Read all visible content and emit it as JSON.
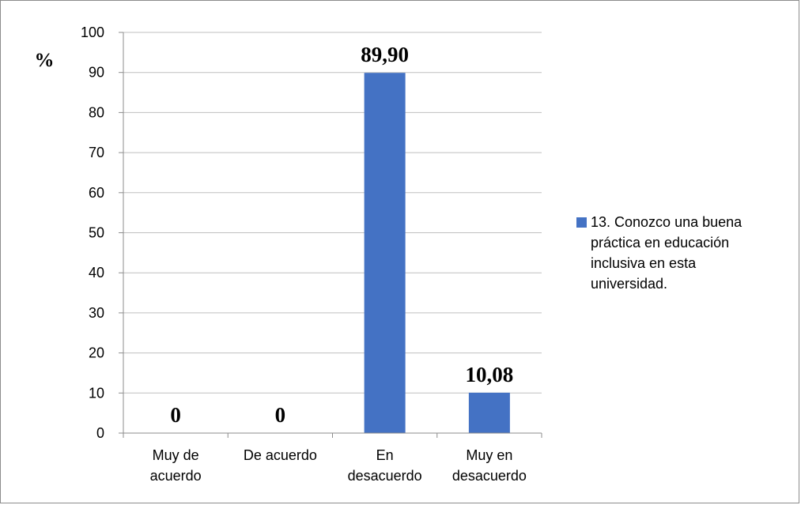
{
  "chart_data": {
    "type": "bar",
    "unit_label": "%",
    "categories": [
      [
        "Muy de",
        "acuerdo"
      ],
      [
        "De acuerdo"
      ],
      [
        "En",
        "desacuerdo"
      ],
      [
        "Muy en",
        "desacuerdo"
      ]
    ],
    "series": [
      {
        "name": "13. Conozco una buena práctica en educación inclusiva en esta universidad.",
        "values": [
          0,
          0,
          89.9,
          10.08
        ],
        "data_labels": [
          "0",
          "0",
          "89,90",
          "10,08"
        ],
        "color": "#4472C4"
      }
    ],
    "legend_lines": [
      "13. Conozco una buena",
      "práctica en educación",
      "inclusiva en esta",
      "universidad."
    ],
    "ylim": [
      0,
      100
    ],
    "yticks": [
      0,
      10,
      20,
      30,
      40,
      50,
      60,
      70,
      80,
      90,
      100
    ],
    "grid": true,
    "legend_position": "right",
    "colors": {
      "bar": "#4472C4",
      "grid": "#bfbfbf",
      "axis": "#8c8c8c"
    }
  }
}
